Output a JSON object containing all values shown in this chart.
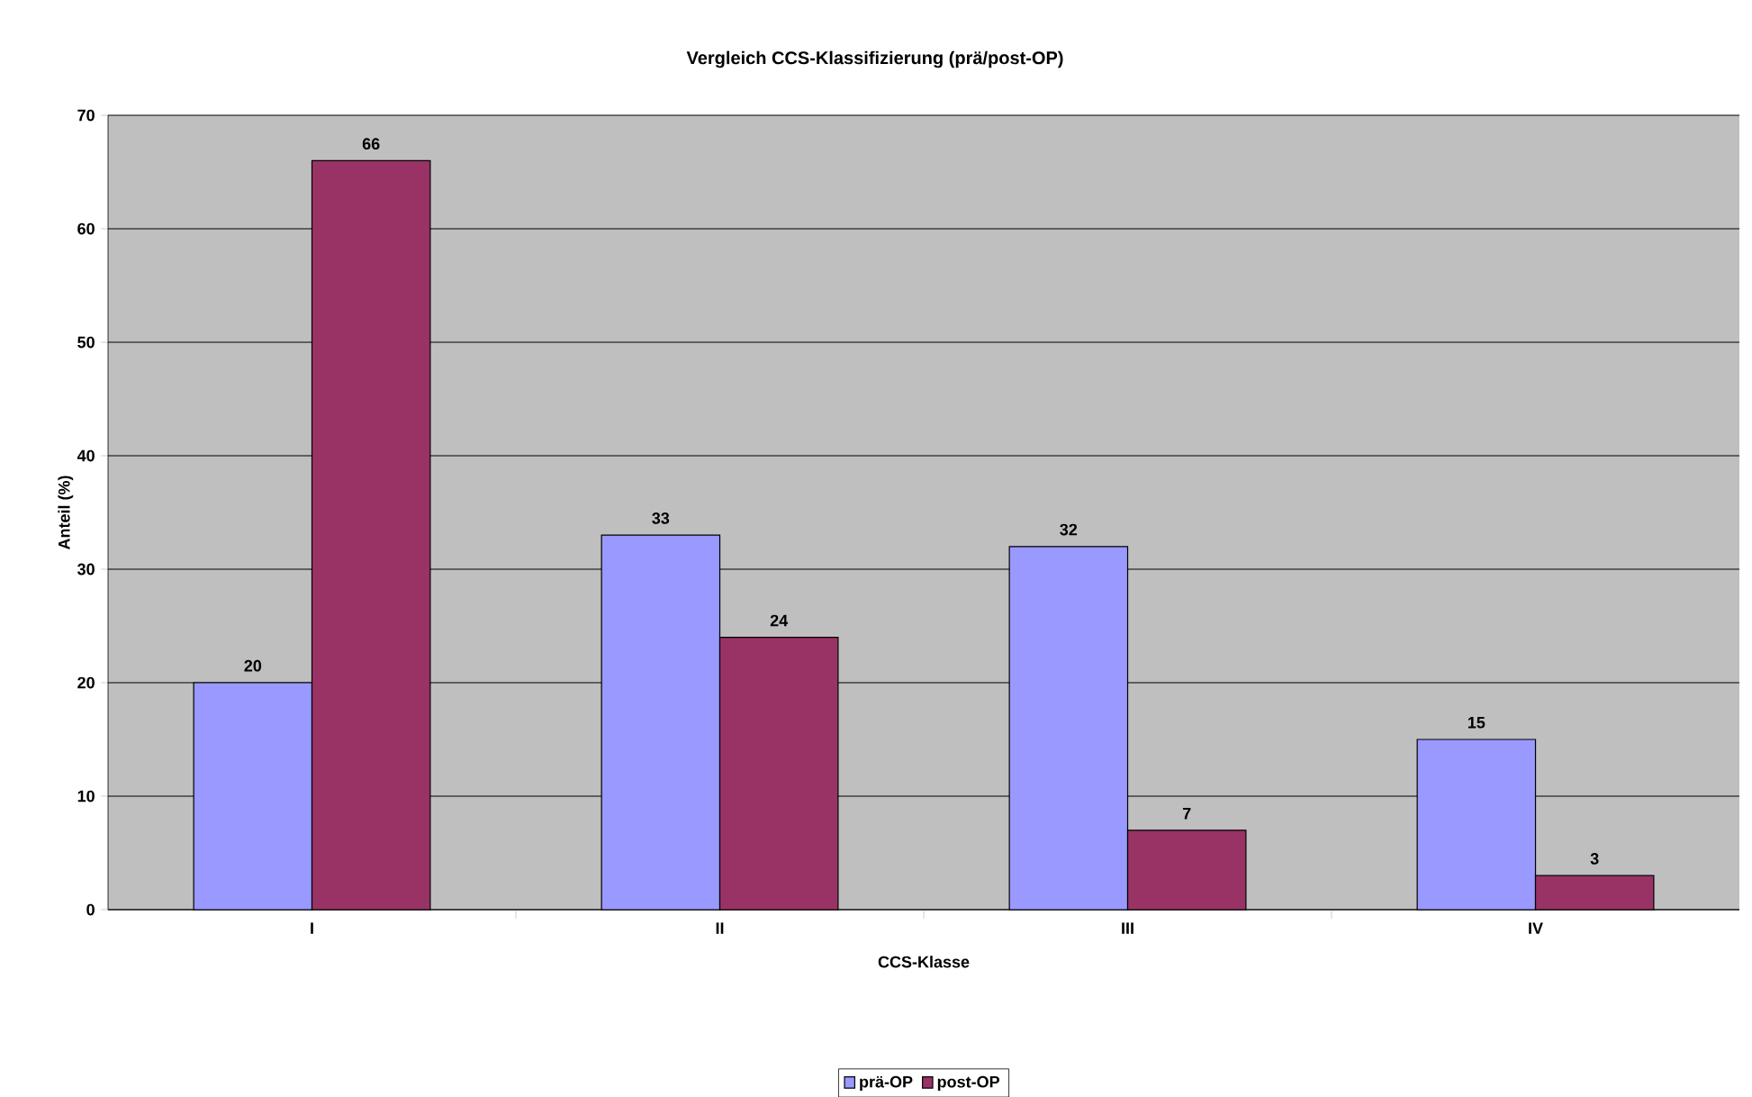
{
  "chart_data": {
    "type": "bar",
    "title": "Vergleich CCS-Klassifizierung (prä/post-OP)",
    "xlabel": "CCS-Klasse",
    "ylabel": "Anteil (%)",
    "categories": [
      "I",
      "II",
      "III",
      "IV"
    ],
    "series": [
      {
        "name": "prä-OP",
        "color": "#9999ff",
        "values": [
          20,
          33,
          32,
          15
        ]
      },
      {
        "name": "post-OP",
        "color": "#993366",
        "values": [
          66,
          24,
          7,
          3
        ]
      }
    ],
    "ylim": [
      0,
      70
    ],
    "yticks": [
      0,
      10,
      20,
      30,
      40,
      50,
      60,
      70
    ],
    "grid": "y",
    "legend": "bottom",
    "data_labels": true
  }
}
